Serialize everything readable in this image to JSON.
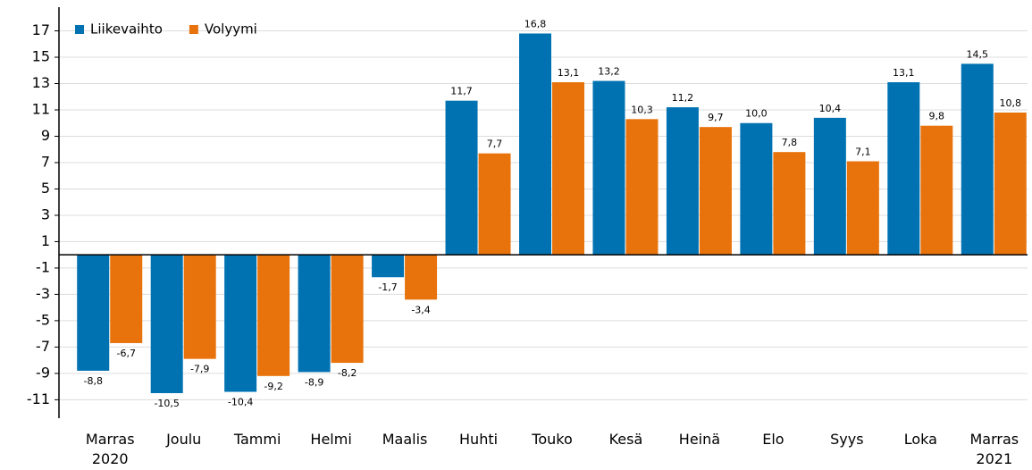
{
  "chart_data": {
    "type": "bar",
    "categories": [
      "Marras 2020",
      "Joulu",
      "Tammi",
      "Helmi",
      "Maalis",
      "Huhti",
      "Touko",
      "Kesä",
      "Heinä",
      "Elo",
      "Syys",
      "Loka",
      "Marras 2021"
    ],
    "series": [
      {
        "name": "Liikevaihto",
        "color": "#0072b2",
        "values": [
          -8.8,
          -10.5,
          -10.4,
          -8.9,
          -1.7,
          11.7,
          16.8,
          13.2,
          11.2,
          10.0,
          10.4,
          13.1,
          14.5
        ],
        "value_labels": [
          "-8,8",
          "-10,5",
          "-10,4",
          "-8,9",
          "-1,7",
          "11,7",
          "16,8",
          "13,2",
          "11,2",
          "10,0",
          "10,4",
          "13,1",
          "14,5"
        ]
      },
      {
        "name": "Volyymi",
        "color": "#e8730c",
        "values": [
          -6.7,
          -7.9,
          -9.2,
          -8.2,
          -3.4,
          7.7,
          13.1,
          10.3,
          9.7,
          7.8,
          7.1,
          9.8,
          10.8
        ],
        "value_labels": [
          "-6,7",
          "-7,9",
          "-9,2",
          "-8,2",
          "-3,4",
          "7,7",
          "13,1",
          "10,3",
          "9,7",
          "7,8",
          "7,1",
          "9,8",
          "10,8"
        ]
      }
    ],
    "ylim": [
      -12.4,
      18.8
    ],
    "yticks": [
      17,
      15,
      13,
      11,
      9,
      7,
      5,
      3,
      1,
      -1,
      -3,
      -5,
      -7,
      -9,
      -11
    ],
    "grid": true,
    "legend": "top-left"
  }
}
